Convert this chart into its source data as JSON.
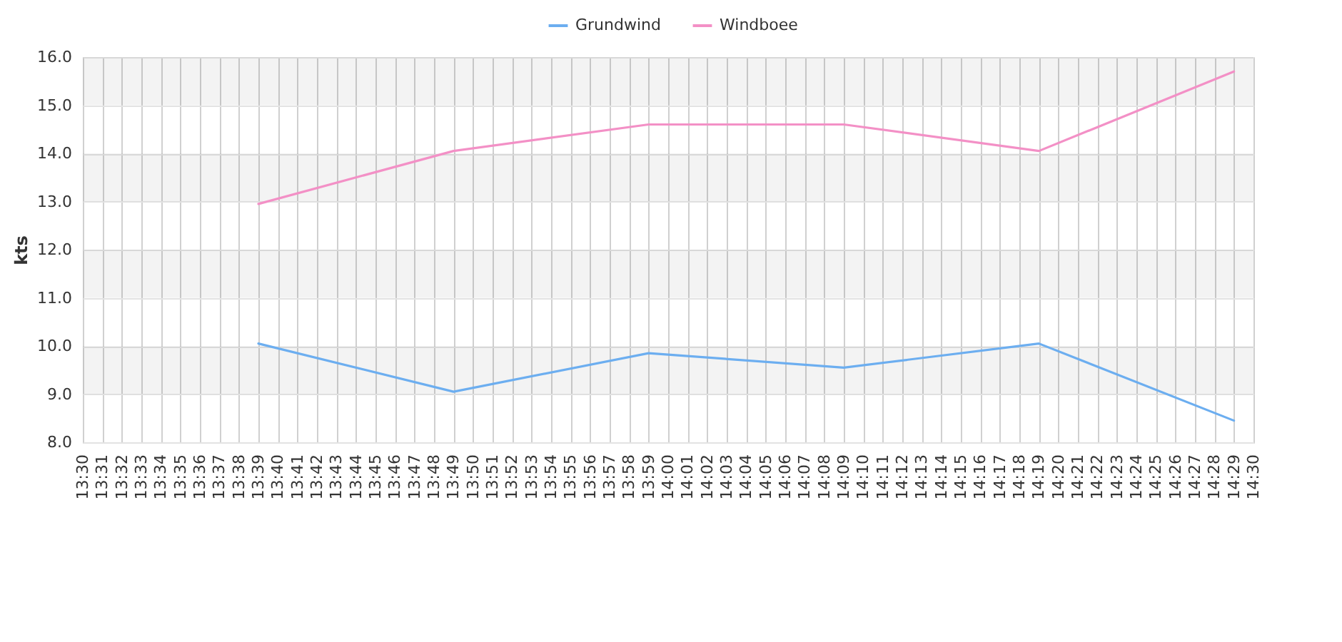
{
  "chart_data": {
    "type": "line",
    "ylabel": "kts",
    "x": [
      13.65,
      13.8167,
      13.9833,
      14.15,
      14.3167,
      14.4833
    ],
    "series": [
      {
        "name": "Grundwind",
        "color": "#6caef0",
        "values": [
          10.05,
          9.05,
          9.85,
          9.55,
          10.05,
          8.45
        ]
      },
      {
        "name": "Windboee",
        "color": "#f390c6",
        "values": [
          12.95,
          14.05,
          14.6,
          14.6,
          14.05,
          15.7
        ]
      }
    ],
    "xlim": [
      13.5,
      14.5
    ],
    "xticks": [
      {
        "value": 13.5,
        "label": "13:30"
      },
      {
        "value": 13.5167,
        "label": "13:31"
      },
      {
        "value": 13.5333,
        "label": "13:32"
      },
      {
        "value": 13.55,
        "label": "13:33"
      },
      {
        "value": 13.5667,
        "label": "13:34"
      },
      {
        "value": 13.5833,
        "label": "13:35"
      },
      {
        "value": 13.6,
        "label": "13:36"
      },
      {
        "value": 13.6167,
        "label": "13:37"
      },
      {
        "value": 13.6333,
        "label": "13:38"
      },
      {
        "value": 13.65,
        "label": "13:39"
      },
      {
        "value": 13.6667,
        "label": "13:40"
      },
      {
        "value": 13.6833,
        "label": "13:41"
      },
      {
        "value": 13.7,
        "label": "13:42"
      },
      {
        "value": 13.7167,
        "label": "13:43"
      },
      {
        "value": 13.7333,
        "label": "13:44"
      },
      {
        "value": 13.75,
        "label": "13:45"
      },
      {
        "value": 13.7667,
        "label": "13:46"
      },
      {
        "value": 13.7833,
        "label": "13:47"
      },
      {
        "value": 13.8,
        "label": "13:48"
      },
      {
        "value": 13.8167,
        "label": "13:49"
      },
      {
        "value": 13.8333,
        "label": "13:50"
      },
      {
        "value": 13.85,
        "label": "13:51"
      },
      {
        "value": 13.8667,
        "label": "13:52"
      },
      {
        "value": 13.8833,
        "label": "13:53"
      },
      {
        "value": 13.9,
        "label": "13:54"
      },
      {
        "value": 13.9167,
        "label": "13:55"
      },
      {
        "value": 13.9333,
        "label": "13:56"
      },
      {
        "value": 13.95,
        "label": "13:57"
      },
      {
        "value": 13.9667,
        "label": "13:58"
      },
      {
        "value": 13.9833,
        "label": "13:59"
      },
      {
        "value": 14.0,
        "label": "14:00"
      },
      {
        "value": 14.0167,
        "label": "14:01"
      },
      {
        "value": 14.0333,
        "label": "14:02"
      },
      {
        "value": 14.05,
        "label": "14:03"
      },
      {
        "value": 14.0667,
        "label": "14:04"
      },
      {
        "value": 14.0833,
        "label": "14:05"
      },
      {
        "value": 14.1,
        "label": "14:06"
      },
      {
        "value": 14.1167,
        "label": "14:07"
      },
      {
        "value": 14.1333,
        "label": "14:08"
      },
      {
        "value": 14.15,
        "label": "14:09"
      },
      {
        "value": 14.1667,
        "label": "14:10"
      },
      {
        "value": 14.1833,
        "label": "14:11"
      },
      {
        "value": 14.2,
        "label": "14:12"
      },
      {
        "value": 14.2167,
        "label": "14:13"
      },
      {
        "value": 14.2333,
        "label": "14:14"
      },
      {
        "value": 14.25,
        "label": "14:15"
      },
      {
        "value": 14.2667,
        "label": "14:16"
      },
      {
        "value": 14.2833,
        "label": "14:17"
      },
      {
        "value": 14.3,
        "label": "14:18"
      },
      {
        "value": 14.3167,
        "label": "14:19"
      },
      {
        "value": 14.3333,
        "label": "14:20"
      },
      {
        "value": 14.35,
        "label": "14:21"
      },
      {
        "value": 14.3667,
        "label": "14:22"
      },
      {
        "value": 14.3833,
        "label": "14:23"
      },
      {
        "value": 14.4,
        "label": "14:24"
      },
      {
        "value": 14.4167,
        "label": "14:25"
      },
      {
        "value": 14.4333,
        "label": "14:26"
      },
      {
        "value": 14.45,
        "label": "14:27"
      },
      {
        "value": 14.4667,
        "label": "14:28"
      },
      {
        "value": 14.4833,
        "label": "14:29"
      },
      {
        "value": 14.5,
        "label": "14:30"
      }
    ],
    "ylim": [
      8,
      16
    ],
    "yticks": [
      {
        "value": 8,
        "label": "8.0"
      },
      {
        "value": 9,
        "label": "9.0"
      },
      {
        "value": 10,
        "label": "10.0"
      },
      {
        "value": 11,
        "label": "11.0"
      },
      {
        "value": 12,
        "label": "12.0"
      },
      {
        "value": 13,
        "label": "13.0"
      },
      {
        "value": 14,
        "label": "14.0"
      },
      {
        "value": 15,
        "label": "15.0"
      },
      {
        "value": 16,
        "label": "16.0"
      }
    ],
    "bands": [
      {
        "axis": "y",
        "from": 9,
        "to": 10,
        "color": "#f3f3f3"
      },
      {
        "axis": "y",
        "from": 11,
        "to": 12,
        "color": "#f3f3f3"
      },
      {
        "axis": "y",
        "from": 13,
        "to": 14,
        "color": "#f3f3f3"
      },
      {
        "axis": "y",
        "from": 15,
        "to": 16,
        "color": "#f3f3f3"
      }
    ],
    "grid": true,
    "legend": "top",
    "line_style": "solid"
  }
}
